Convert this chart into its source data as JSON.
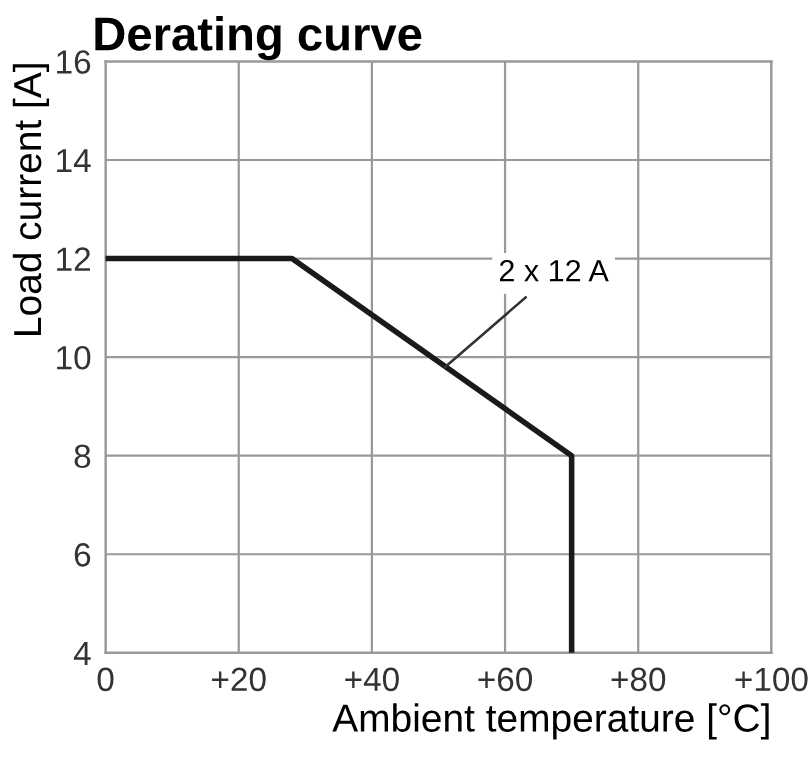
{
  "chart_data": {
    "type": "line",
    "title": "Derating curve",
    "xlabel": "Ambient temperature [°C]",
    "ylabel": "Load current [A]",
    "x": [
      0,
      28,
      70,
      70
    ],
    "series": [
      {
        "color": "#1a1a1a",
        "values": [
          12,
          12,
          8,
          4
        ]
      }
    ],
    "annotations": [
      {
        "text": "2 x 12 A",
        "x": 51,
        "y": 9.8
      }
    ],
    "xlim": [
      0,
      100
    ],
    "ylim": [
      4,
      16
    ],
    "xticks": [
      0,
      {
        "value": 20,
        "label": "+20"
      },
      {
        "value": 40,
        "label": "+40"
      },
      {
        "value": 60,
        "label": "+60"
      },
      {
        "value": 80,
        "label": "+80"
      },
      {
        "value": 100,
        "label": "+100"
      }
    ],
    "yticks": [
      4,
      6,
      8,
      10,
      12,
      14,
      16
    ],
    "grid": true,
    "marker": "none",
    "line_style": "solid",
    "legend": false
  }
}
